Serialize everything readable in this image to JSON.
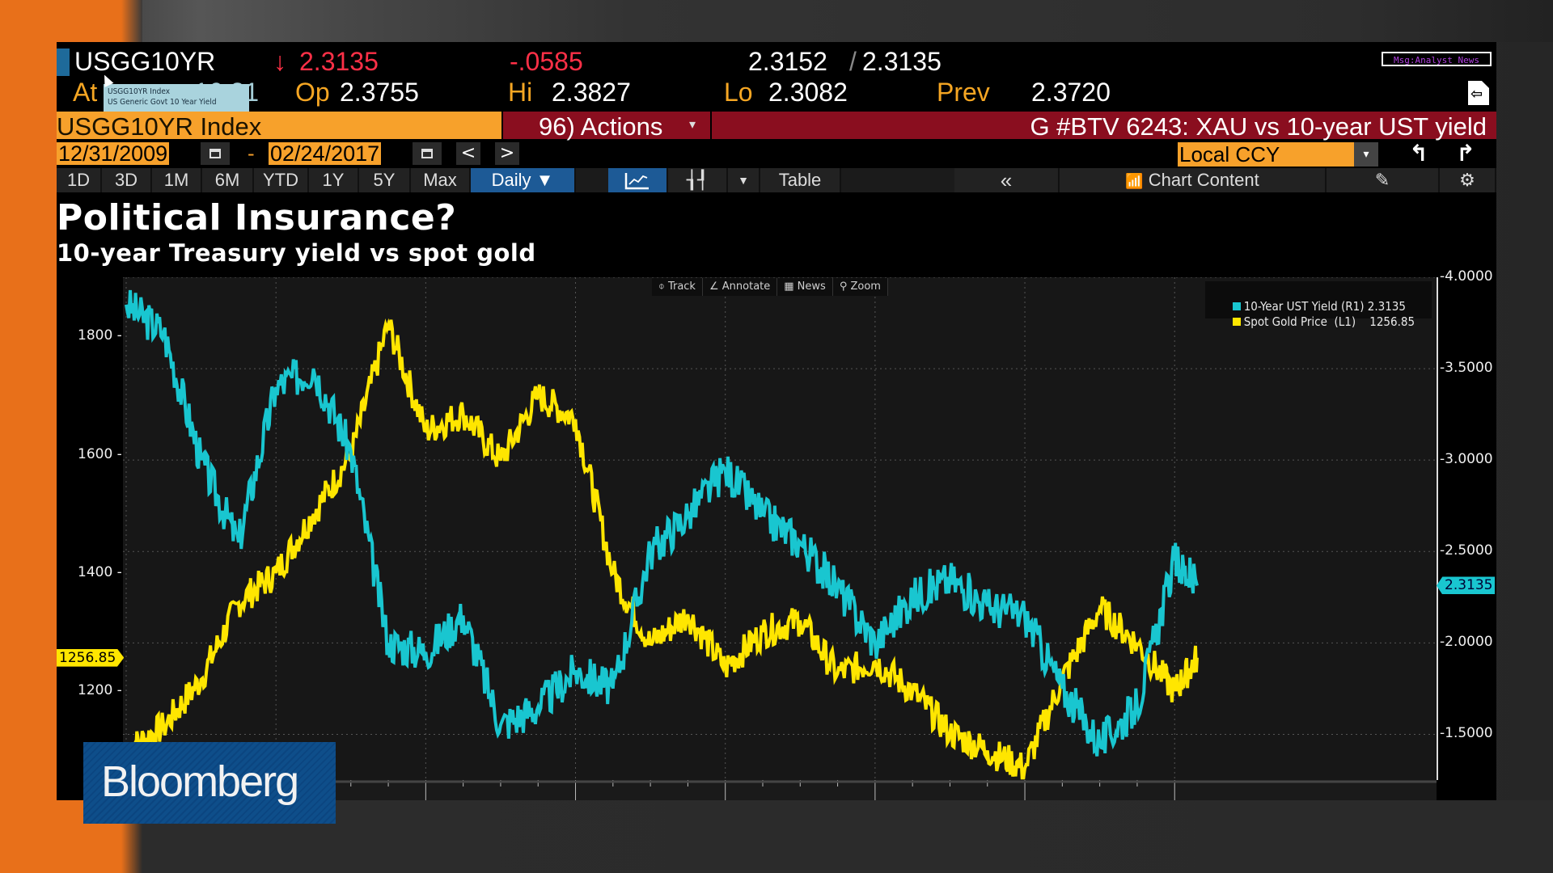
{
  "ticker": {
    "symbol": "USGG10YR",
    "direction_arrow": "↓",
    "last": "2.3135",
    "change": "-.0585",
    "bid_ask": "2.3152",
    "bid_ask_sep": "/",
    "ask": "2.3135",
    "at_label": "At",
    "at_value": "16:21",
    "open_label": "Op",
    "open": "2.3755",
    "high_label": "Hi",
    "high": "2.3827",
    "low_label": "Lo",
    "low": "2.3082",
    "prev_label": "Prev",
    "prev": "2.3720",
    "tooltip_line1": "USGG10YR Index",
    "tooltip_line2": "US Generic Govt 10 Year Yield",
    "news_button": "Msg:Analyst News"
  },
  "header": {
    "security": "USGG10YR Index",
    "actions": "96) Actions",
    "actions_caret": "▾",
    "chart_title": "G #BTV 6243: XAU vs 10-year UST yield"
  },
  "date_range": {
    "start": "12/31/2009",
    "separator": "-",
    "end": "02/24/2017",
    "prev": "<",
    "next": ">",
    "currency": "Local CCY",
    "currency_caret": "▾"
  },
  "toolbar": {
    "periods": [
      "1D",
      "3D",
      "1M",
      "6M",
      "YTD",
      "1Y",
      "5Y",
      "Max"
    ],
    "frequency": "Daily ▼",
    "table": "Table",
    "collapse": "«",
    "chart_content": "Chart Content"
  },
  "chart_tools": [
    "Track",
    "Annotate",
    "News",
    "Zoom"
  ],
  "colors": {
    "yield": "#19c6d0",
    "gold": "#ffe600",
    "accent_orange": "#f7a12b",
    "header_red": "#8a0e1f",
    "active_blue": "#1d5a96"
  },
  "logo": "Bloomberg",
  "chart_data": {
    "type": "line",
    "title": "Political Insurance?",
    "subtitle": "10-year Treasury yield vs spot gold",
    "x_range": [
      "12/31/2009",
      "02/24/2017"
    ],
    "xlabel": "",
    "grid": true,
    "legend_position": "top-right",
    "legend": [
      {
        "name": "10-Year UST Yield (R1)",
        "last": "2.3135",
        "axis": "right"
      },
      {
        "name": "Spot Gold Price  (L1)",
        "last": "1256.85",
        "axis": "left"
      }
    ],
    "left_axis": {
      "label": "Spot Gold Price",
      "ticks": [
        1200,
        1400,
        1600,
        1800
      ],
      "ylim": [
        1050,
        1900
      ],
      "last_tag": "1256.85"
    },
    "right_axis": {
      "label": "10-Year UST Yield",
      "ticks": [
        "1.5000",
        "2.0000",
        "2.5000",
        "3.0000",
        "3.5000",
        "4.0000"
      ],
      "ylim": [
        1.25,
        4.0
      ],
      "last_tag": "2.3135"
    },
    "x_years": [
      2010.0,
      2010.25,
      2010.5,
      2010.75,
      2011.0,
      2011.25,
      2011.5,
      2011.75,
      2012.0,
      2012.25,
      2012.5,
      2012.75,
      2013.0,
      2013.25,
      2013.5,
      2013.75,
      2014.0,
      2014.25,
      2014.5,
      2014.75,
      2015.0,
      2015.25,
      2015.5,
      2015.75,
      2016.0,
      2016.25,
      2016.5,
      2016.75,
      2017.0,
      2017.15
    ],
    "series": [
      {
        "name": "10-Year UST Yield",
        "axis": "right",
        "values": [
          3.85,
          3.7,
          3.0,
          2.55,
          3.4,
          3.5,
          3.05,
          2.0,
          1.95,
          2.15,
          1.55,
          1.65,
          1.85,
          1.75,
          2.5,
          2.7,
          2.95,
          2.7,
          2.55,
          2.3,
          2.0,
          2.25,
          2.35,
          2.2,
          2.15,
          1.75,
          1.45,
          1.65,
          2.45,
          2.3135
        ]
      },
      {
        "name": "Spot Gold Price",
        "axis": "left",
        "values": [
          1100,
          1140,
          1220,
          1350,
          1400,
          1500,
          1600,
          1820,
          1640,
          1670,
          1590,
          1700,
          1660,
          1400,
          1280,
          1330,
          1240,
          1300,
          1320,
          1230,
          1250,
          1200,
          1130,
          1100,
          1070,
          1220,
          1340,
          1280,
          1200,
          1256.85
        ]
      }
    ]
  }
}
